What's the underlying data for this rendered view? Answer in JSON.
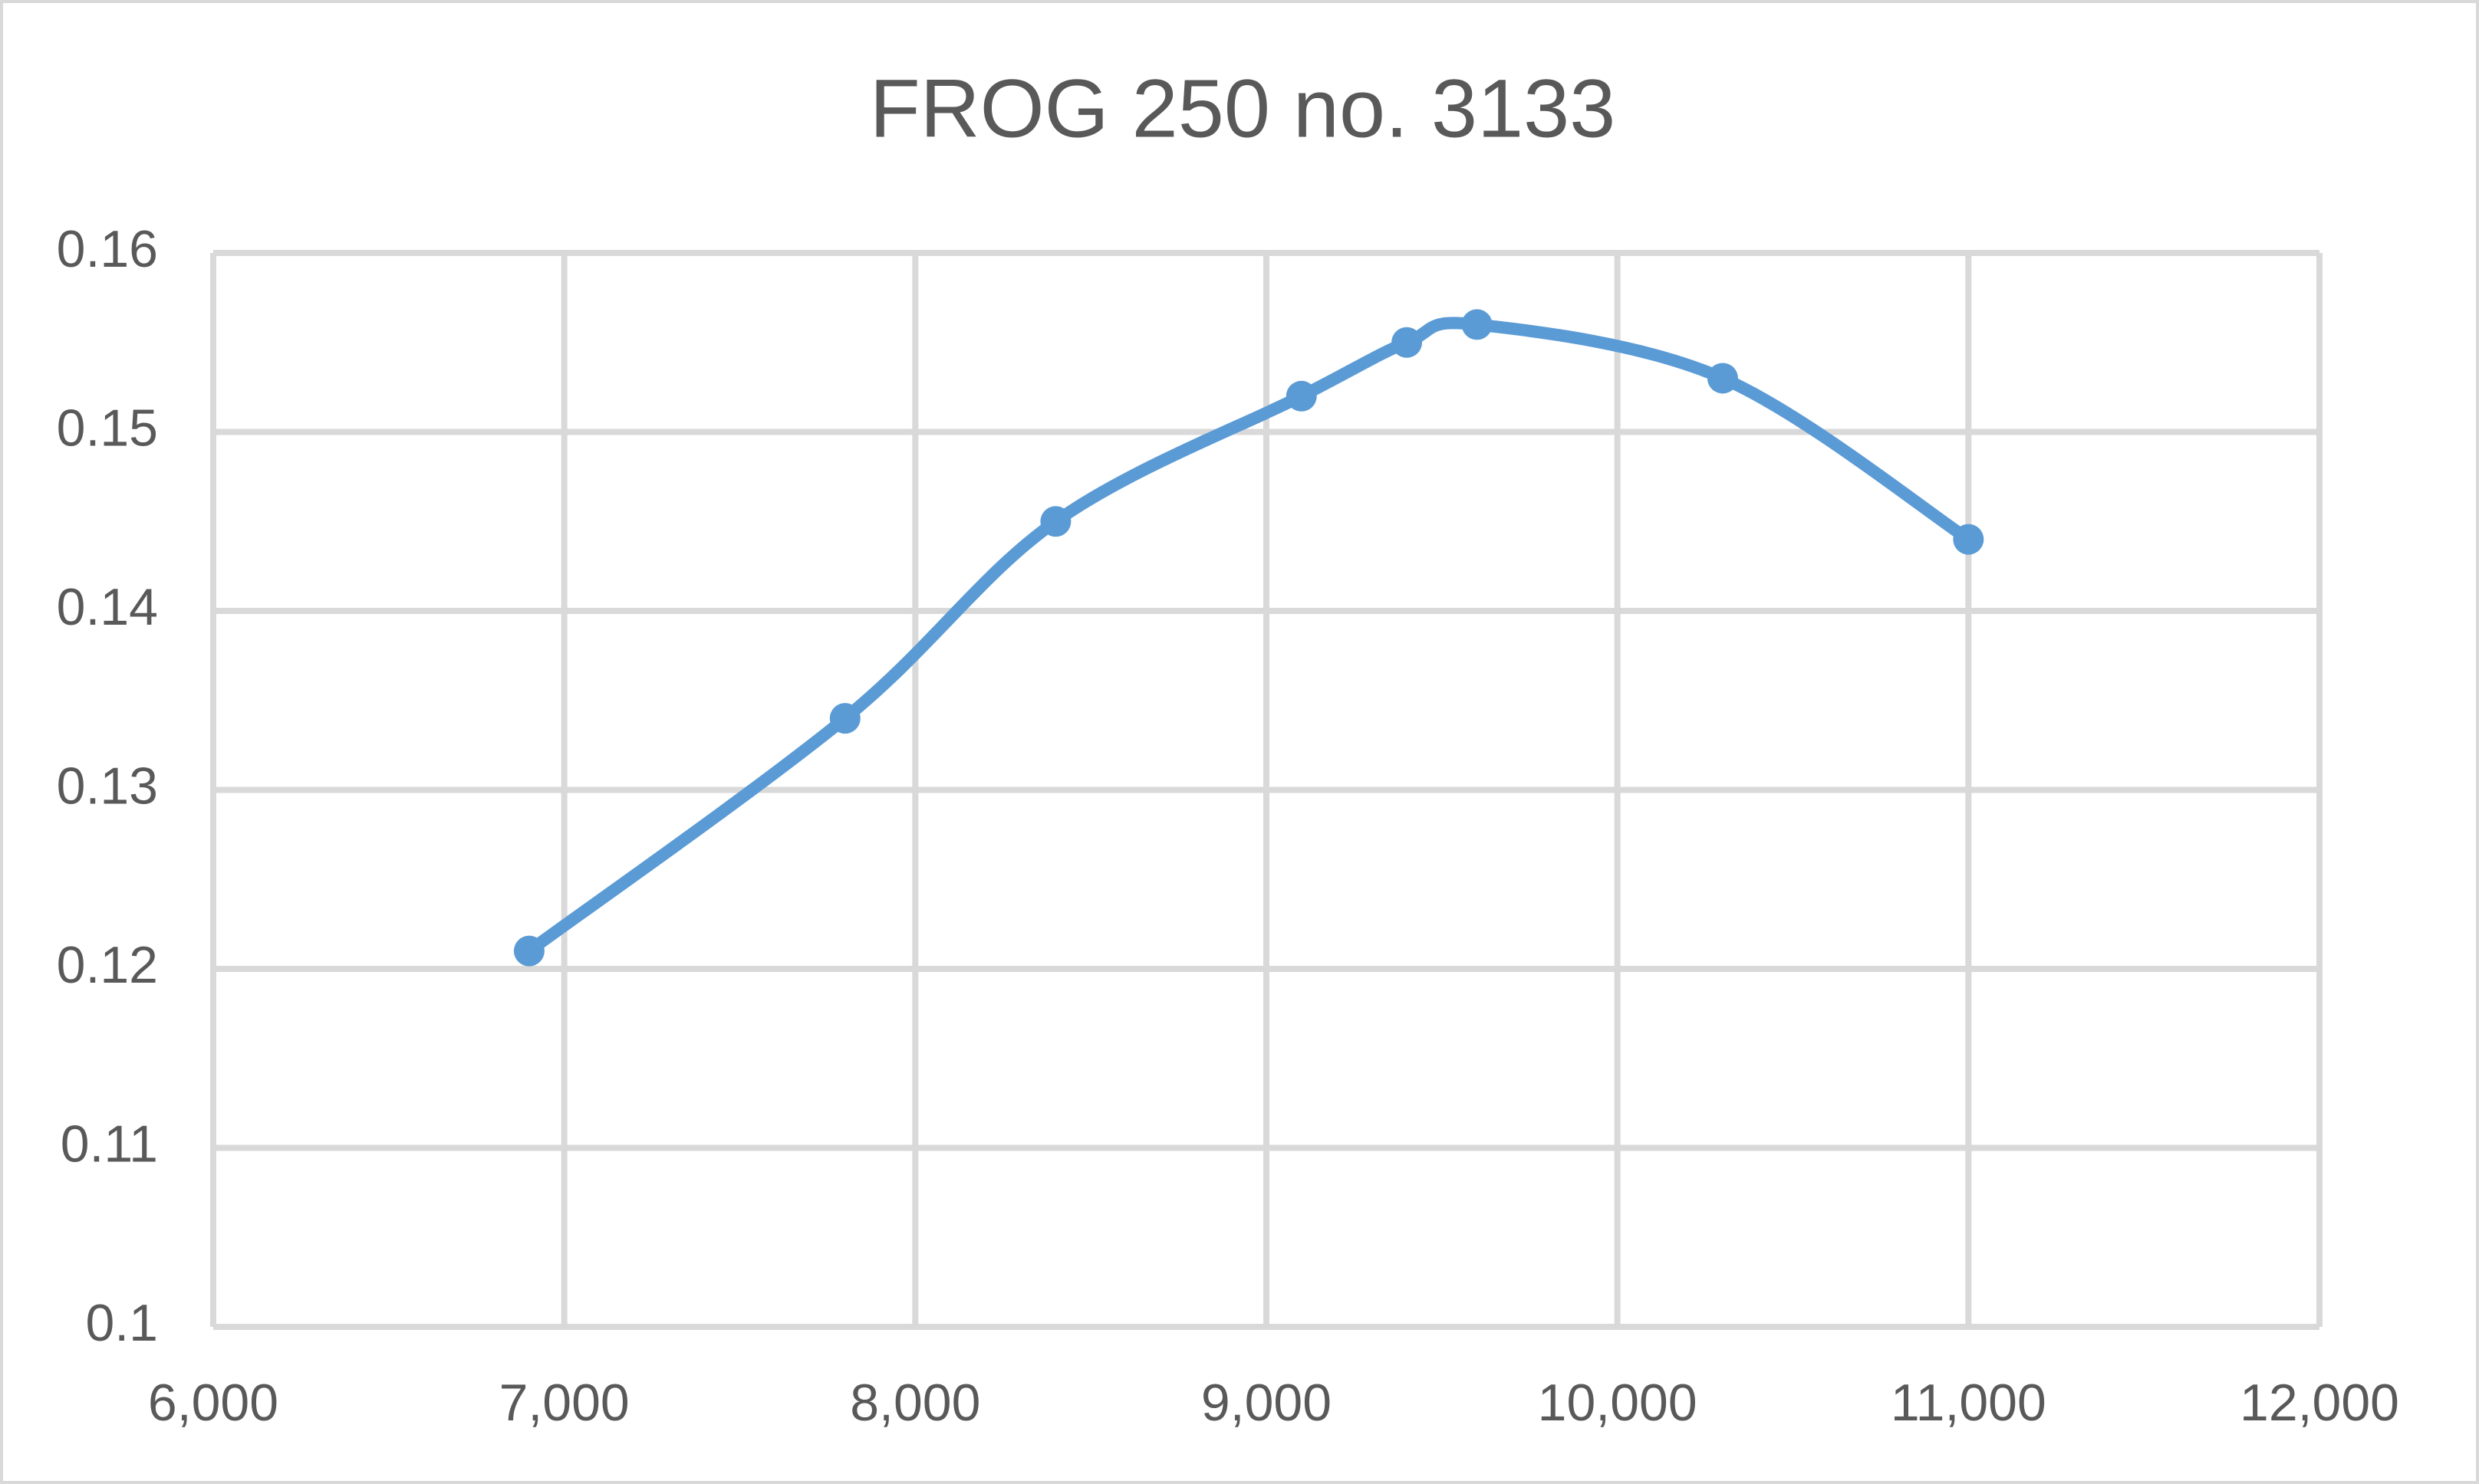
{
  "chart_data": {
    "type": "scatter",
    "title": "FROG 250 no. 3133",
    "x": [
      6900,
      7800,
      8400,
      9100,
      9400,
      9600,
      10300,
      11000
    ],
    "series": [
      {
        "name": "FROG 250 no. 3133",
        "color": "#5b9bd5",
        "values": [
          0.121,
          0.134,
          0.145,
          0.152,
          0.155,
          0.156,
          0.153,
          0.144
        ]
      }
    ],
    "smooth": true,
    "markers": true,
    "xlim": [
      6000,
      12000
    ],
    "xticks": [
      {
        "value": 6000,
        "label": "6,000"
      },
      {
        "value": 7000,
        "label": "7,000"
      },
      {
        "value": 8000,
        "label": "8,000"
      },
      {
        "value": 9000,
        "label": "9,000"
      },
      {
        "value": 10000,
        "label": "10,000"
      },
      {
        "value": 11000,
        "label": "11,000"
      },
      {
        "value": 12000,
        "label": "12,000"
      }
    ],
    "ylim": [
      0.1,
      0.16
    ],
    "yticks": [
      0.1,
      0.11,
      0.12,
      0.13,
      0.14,
      0.15,
      0.16
    ],
    "grid": true
  }
}
